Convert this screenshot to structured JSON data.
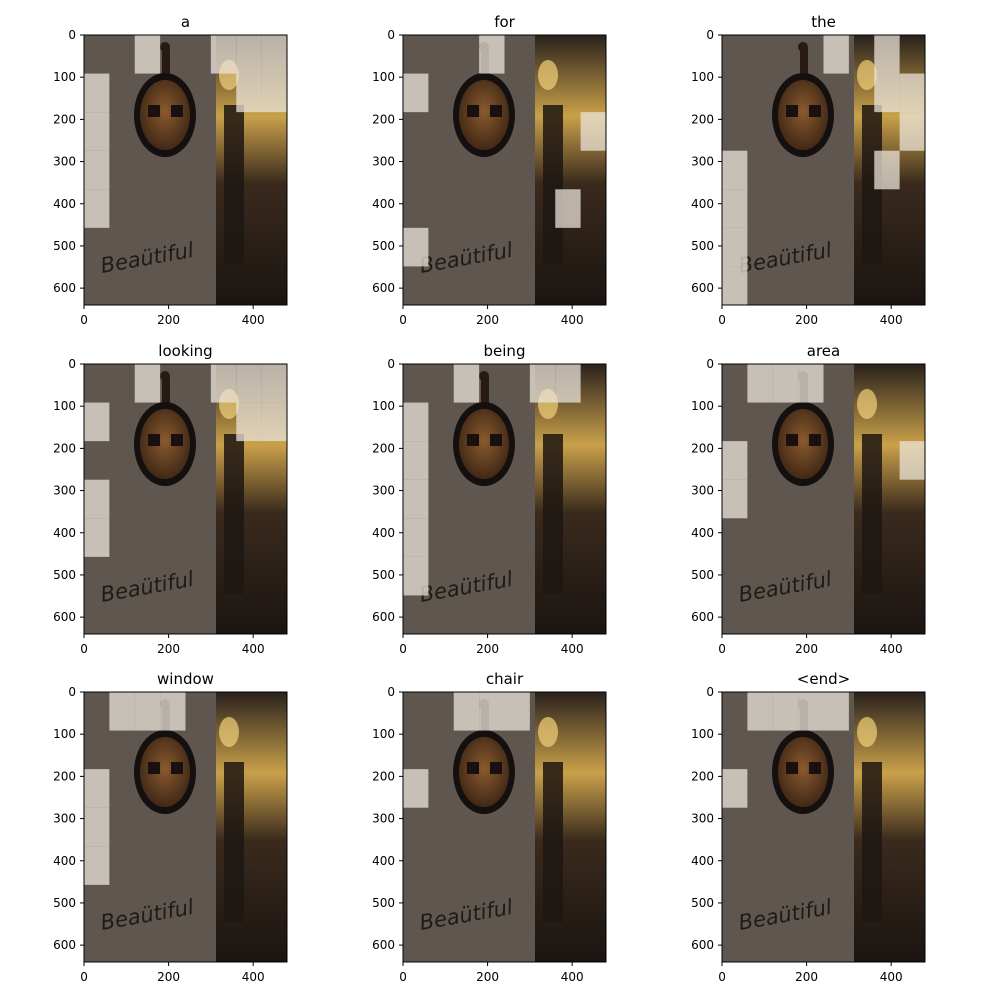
{
  "figure": {
    "panels": [
      {
        "title": "a",
        "hot": [
          [
            2,
            0
          ],
          [
            5,
            0
          ],
          [
            6,
            0
          ],
          [
            7,
            0
          ],
          [
            0,
            1
          ],
          [
            6,
            1
          ],
          [
            7,
            1
          ],
          [
            0,
            2
          ],
          [
            0,
            3
          ],
          [
            0,
            4
          ]
        ]
      },
      {
        "title": "for",
        "hot": [
          [
            3,
            0
          ],
          [
            0,
            1
          ],
          [
            7,
            2
          ],
          [
            6,
            4
          ],
          [
            0,
            5
          ]
        ]
      },
      {
        "title": "the",
        "hot": [
          [
            4,
            0
          ],
          [
            6,
            0
          ],
          [
            6,
            1
          ],
          [
            7,
            1
          ],
          [
            7,
            2
          ],
          [
            0,
            3
          ],
          [
            6,
            3
          ],
          [
            0,
            4
          ],
          [
            0,
            5
          ],
          [
            0,
            6
          ]
        ]
      },
      {
        "title": "looking",
        "hot": [
          [
            2,
            0
          ],
          [
            5,
            0
          ],
          [
            6,
            0
          ],
          [
            7,
            0
          ],
          [
            0,
            1
          ],
          [
            6,
            1
          ],
          [
            7,
            1
          ],
          [
            0,
            3
          ],
          [
            0,
            4
          ]
        ]
      },
      {
        "title": "being",
        "hot": [
          [
            2,
            0
          ],
          [
            5,
            0
          ],
          [
            6,
            0
          ],
          [
            0,
            1
          ],
          [
            0,
            2
          ],
          [
            0,
            3
          ],
          [
            0,
            4
          ],
          [
            0,
            5
          ]
        ]
      },
      {
        "title": "area",
        "hot": [
          [
            1,
            0
          ],
          [
            2,
            0
          ],
          [
            3,
            0
          ],
          [
            0,
            2
          ],
          [
            7,
            2
          ],
          [
            0,
            3
          ]
        ]
      },
      {
        "title": "window",
        "hot": [
          [
            1,
            0
          ],
          [
            2,
            0
          ],
          [
            3,
            0
          ],
          [
            0,
            2
          ],
          [
            0,
            3
          ],
          [
            0,
            4
          ]
        ]
      },
      {
        "title": "chair",
        "hot": [
          [
            2,
            0
          ],
          [
            3,
            0
          ],
          [
            4,
            0
          ],
          [
            0,
            2
          ]
        ]
      },
      {
        "title": "<end>",
        "hot": [
          [
            1,
            0
          ],
          [
            2,
            0
          ],
          [
            3,
            0
          ],
          [
            4,
            0
          ],
          [
            0,
            2
          ]
        ]
      }
    ],
    "xticks": [
      "0",
      "200",
      "400"
    ],
    "yticks": [
      "0",
      "100",
      "200",
      "300",
      "400",
      "500",
      "600"
    ],
    "image_word": "Beaütiful",
    "colors": {
      "wall": "#5f574f",
      "dark": "#1a1411",
      "lamp": "#c9a14a",
      "mirror": "#7a4a22"
    }
  }
}
